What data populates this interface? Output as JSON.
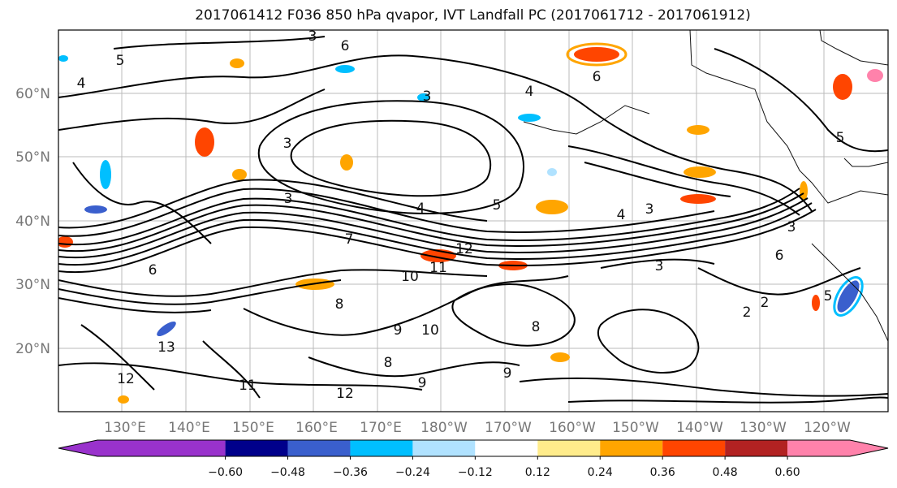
{
  "title": "2017061412 F036 850 hPa qvapor, IVT Landfall PC (2017061712 - 2017061912)",
  "map": {
    "lat_labels": [
      "60°N",
      "50°N",
      "40°N",
      "30°N",
      "20°N"
    ],
    "lon_labels": [
      "130°E",
      "140°E",
      "150°E",
      "160°E",
      "170°E",
      "180°W",
      "170°W",
      "160°W",
      "150°W",
      "140°W",
      "130°W",
      "120°W"
    ],
    "contour_labels": [
      "3",
      "6",
      "4",
      "5",
      "3",
      "4",
      "5",
      "3",
      "3",
      "4",
      "3",
      "12",
      "11",
      "10",
      "8",
      "9",
      "10",
      "12",
      "9",
      "8",
      "2",
      "2",
      "5",
      "6",
      "13",
      "12",
      "11",
      "9",
      "8",
      "7",
      "6",
      "3",
      "4",
      "5",
      "3",
      "6"
    ]
  },
  "colorbar": {
    "tick_labels": [
      "−0.60",
      "−0.48",
      "−0.36",
      "−0.24",
      "−0.12",
      "0.12",
      "0.24",
      "0.36",
      "0.48",
      "0.60"
    ],
    "colors": [
      "#9932cc",
      "#00008b",
      "#3a5fcd",
      "#00bfff",
      "#b0e2ff",
      "#ffffff",
      "#ffec8b",
      "#ffa500",
      "#ff4500",
      "#b22222",
      "#ff82ab"
    ]
  }
}
